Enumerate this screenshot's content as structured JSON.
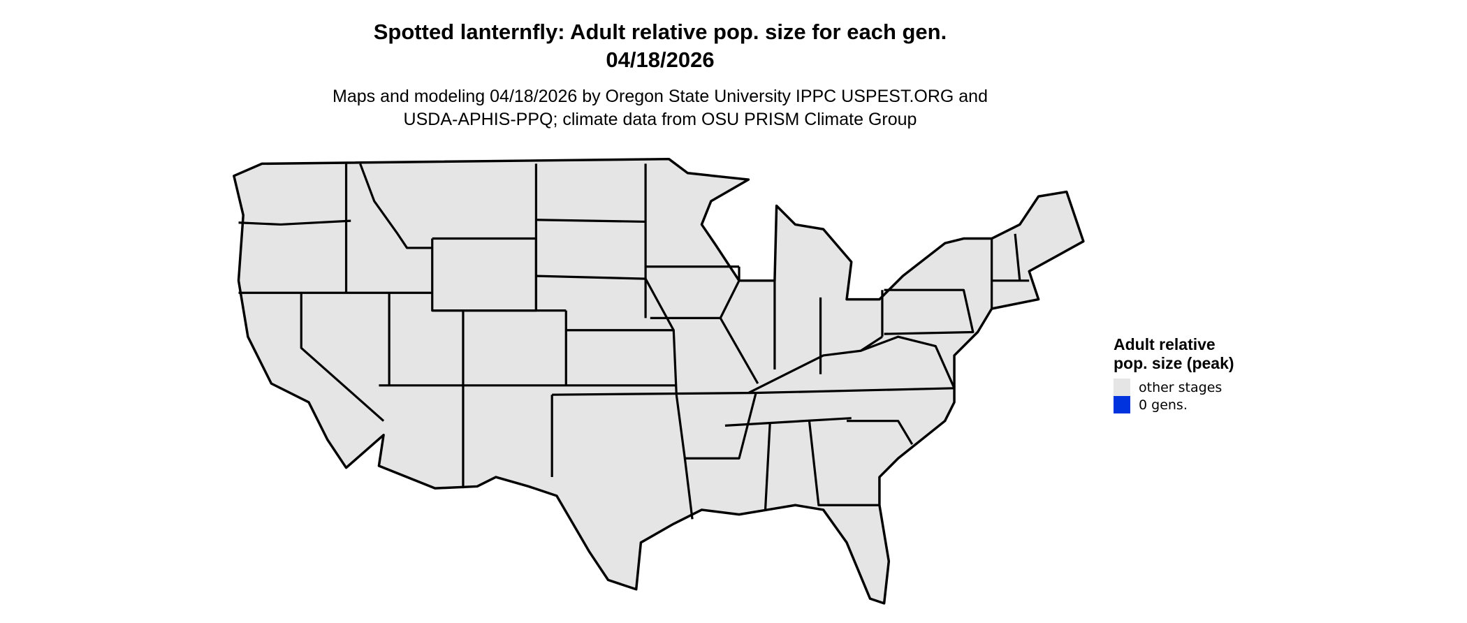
{
  "title": {
    "line1": "Spotted lanternfly: Adult relative pop. size for each gen.",
    "line2": "04/18/2026"
  },
  "subtitle": {
    "line1": "Maps and modeling 04/18/2026 by Oregon State University IPPC USPEST.ORG and",
    "line2": "USDA-APHIS-PPQ; climate data from OSU PRISM Climate Group"
  },
  "map": {
    "region": "Contiguous United States",
    "fill_color": "#e5e5e5",
    "border_color": "#000000"
  },
  "legend": {
    "title": "Adult relative pop. size (peak)",
    "items": [
      {
        "label": "other stages",
        "color": "#e5e5e5"
      },
      {
        "label": "0 gens.",
        "color": "#0033dd"
      }
    ]
  }
}
